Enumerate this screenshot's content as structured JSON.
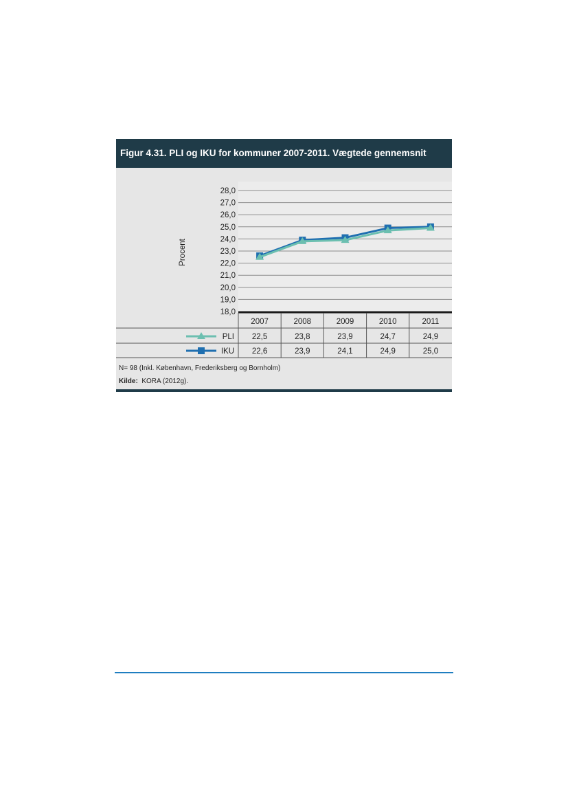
{
  "figure": {
    "title": "Figur 4.31. PLI og IKU for kommuner 2007-2011. Vægtede gennemsnit",
    "note": "N= 98  (Inkl. København, Frederiksberg og Bornholm)",
    "source_label": "Kilde:",
    "source_text": "KORA (2012g)."
  },
  "chart_data": {
    "type": "line",
    "categories": [
      "2007",
      "2008",
      "2009",
      "2010",
      "2011"
    ],
    "ylabel": "Procent",
    "ylim": [
      18.0,
      28.0
    ],
    "yticks": [
      "18,0",
      "19,0",
      "20,0",
      "21,0",
      "22,0",
      "23,0",
      "24,0",
      "25,0",
      "26,0",
      "27,0",
      "28,0"
    ],
    "grid": true,
    "legend": "data-table",
    "series": [
      {
        "name": "PLI",
        "values": [
          22.5,
          23.8,
          23.9,
          24.7,
          24.9
        ],
        "labels": [
          "22,5",
          "23,8",
          "23,9",
          "24,7",
          "24,9"
        ],
        "color": "#6cbfb0",
        "marker": "triangle"
      },
      {
        "name": "IKU",
        "values": [
          22.6,
          23.9,
          24.1,
          24.9,
          25.0
        ],
        "labels": [
          "22,6",
          "23,9",
          "24,1",
          "24,9",
          "25,0"
        ],
        "color": "#1f6fb0",
        "marker": "square"
      }
    ]
  }
}
